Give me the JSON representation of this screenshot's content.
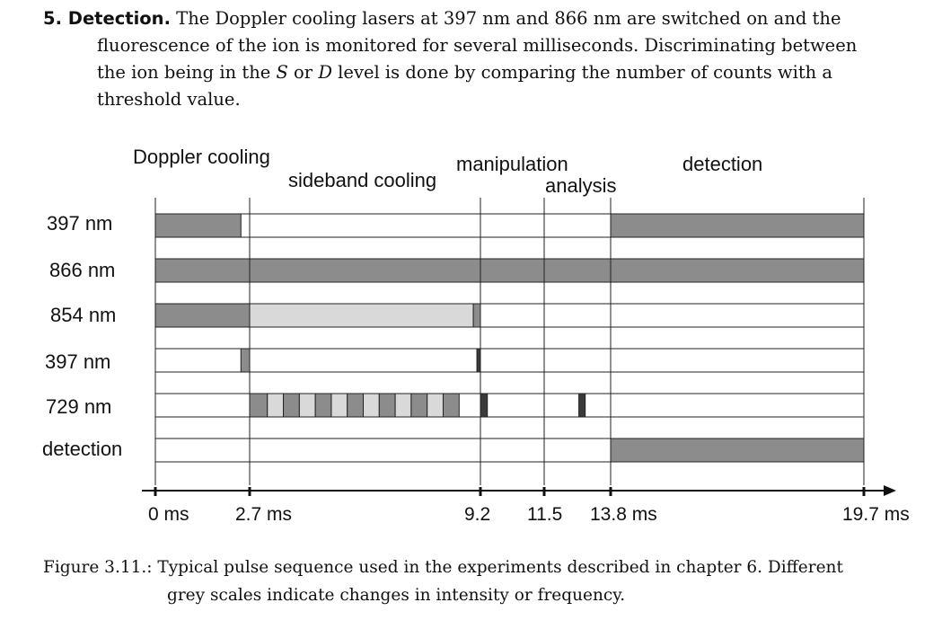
{
  "paragraph": {
    "heading": "5. Detection.",
    "line1": " The Doppler cooling lasers at 397 nm and 866 nm are switched on and the",
    "line2": "fluorescence of the ion is monitored for several milliseconds. Discriminating between",
    "line3a": "the ion being in the ",
    "sym_s": "S",
    "line3b": " or ",
    "sym_d": "D",
    "line3c": " level is done by comparing the number of counts with a",
    "line4": "threshold value."
  },
  "diagram": {
    "phases": [
      "Doppler cooling",
      "sideband cooling",
      "manipulation",
      "analysis",
      "detection"
    ],
    "rows": [
      "397 nm",
      "866 nm",
      "854 nm",
      "397 nm",
      "729 nm",
      "detection"
    ],
    "time_ticks": [
      "0 ms",
      "2.7 ms",
      "9.2",
      "11.5",
      "13.8 ms",
      "19.7 ms"
    ],
    "colors": {
      "dark": "#8c8c8c",
      "light": "#d9d9d9",
      "black": "#3a3a3a"
    },
    "pulses": [
      {
        "row": 0,
        "t0": 0.0,
        "t1": 2.45,
        "shade": "dark"
      },
      {
        "row": 0,
        "t0": 13.8,
        "t1": 19.7,
        "shade": "dark"
      },
      {
        "row": 1,
        "t0": 0.0,
        "t1": 19.7,
        "shade": "dark"
      },
      {
        "row": 2,
        "t0": 0.0,
        "t1": 2.7,
        "shade": "dark"
      },
      {
        "row": 2,
        "t0": 2.7,
        "t1": 9.0,
        "shade": "light"
      },
      {
        "row": 2,
        "t0": 9.0,
        "t1": 9.2,
        "shade": "dark"
      },
      {
        "row": 3,
        "t0": 2.45,
        "t1": 2.7,
        "shade": "dark"
      },
      {
        "row": 3,
        "t0": 9.1,
        "t1": 9.2,
        "shade": "black"
      },
      {
        "row": 4,
        "t0": 2.7,
        "t1": 3.2,
        "shade": "dark"
      },
      {
        "row": 4,
        "t0": 3.2,
        "t1": 3.65,
        "shade": "light"
      },
      {
        "row": 4,
        "t0": 3.65,
        "t1": 4.1,
        "shade": "dark"
      },
      {
        "row": 4,
        "t0": 4.1,
        "t1": 4.55,
        "shade": "light"
      },
      {
        "row": 4,
        "t0": 4.55,
        "t1": 5.0,
        "shade": "dark"
      },
      {
        "row": 4,
        "t0": 5.0,
        "t1": 5.45,
        "shade": "light"
      },
      {
        "row": 4,
        "t0": 5.45,
        "t1": 5.9,
        "shade": "dark"
      },
      {
        "row": 4,
        "t0": 5.9,
        "t1": 6.35,
        "shade": "light"
      },
      {
        "row": 4,
        "t0": 6.35,
        "t1": 6.8,
        "shade": "dark"
      },
      {
        "row": 4,
        "t0": 6.8,
        "t1": 7.25,
        "shade": "light"
      },
      {
        "row": 4,
        "t0": 7.25,
        "t1": 7.7,
        "shade": "dark"
      },
      {
        "row": 4,
        "t0": 7.7,
        "t1": 8.15,
        "shade": "light"
      },
      {
        "row": 4,
        "t0": 8.15,
        "t1": 8.6,
        "shade": "dark"
      },
      {
        "row": 4,
        "t0": 9.2,
        "t1": 9.45,
        "shade": "black"
      },
      {
        "row": 4,
        "t0": 12.7,
        "t1": 12.92,
        "shade": "black"
      },
      {
        "row": 5,
        "t0": 13.8,
        "t1": 19.7,
        "shade": "dark"
      }
    ]
  },
  "caption": {
    "label": "Figure 3.11.:",
    "line1": " Typical pulse sequence used in the experiments described in chapter 6. Different",
    "line2": "grey scales indicate changes in intensity or frequency."
  }
}
